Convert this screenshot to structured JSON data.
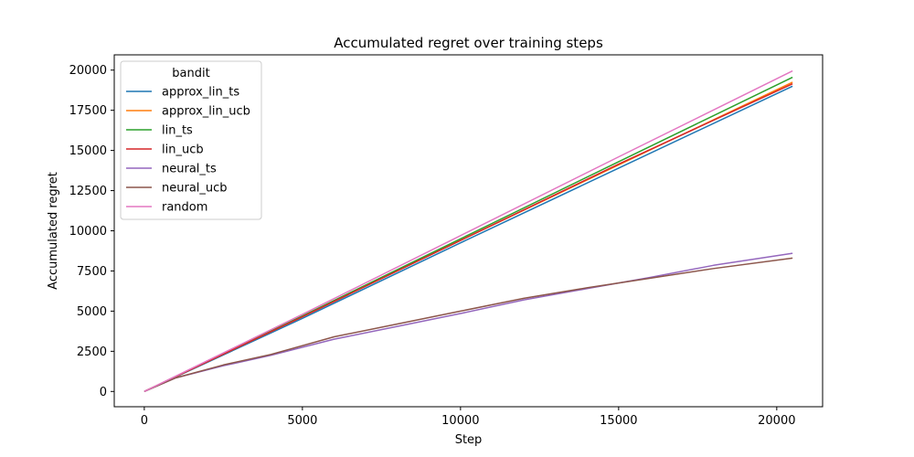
{
  "chart_data": {
    "type": "line",
    "title": "Accumulated regret over training steps",
    "xlabel": "Step",
    "ylabel": "Accumulated regret",
    "xlim": [
      -950,
      21450
    ],
    "ylim": [
      -950,
      20950
    ],
    "xticks": [
      0,
      5000,
      10000,
      15000,
      20000
    ],
    "yticks": [
      0,
      2500,
      5000,
      7500,
      10000,
      12500,
      15000,
      17500,
      20000
    ],
    "grid": false,
    "legend": {
      "title": "bandit",
      "placement": "top-left"
    },
    "series": [
      {
        "name": "approx_lin_ts",
        "color": "#1f77b4",
        "x": [
          0,
          5000,
          10000,
          15000,
          20500
        ],
        "y": [
          0,
          4550,
          9250,
          13900,
          19000
        ]
      },
      {
        "name": "approx_lin_ucb",
        "color": "#ff7f0e",
        "x": [
          0,
          5000,
          10000,
          15000,
          20500
        ],
        "y": [
          0,
          4650,
          9400,
          14100,
          19250
        ]
      },
      {
        "name": "lin_ts",
        "color": "#2ca02c",
        "x": [
          0,
          5000,
          10000,
          15000,
          20500
        ],
        "y": [
          0,
          4700,
          9500,
          14300,
          19550
        ]
      },
      {
        "name": "lin_ucb",
        "color": "#d62728",
        "x": [
          0,
          5000,
          10000,
          15000,
          20500
        ],
        "y": [
          0,
          4650,
          9400,
          14150,
          19150
        ]
      },
      {
        "name": "neural_ts",
        "color": "#9467bd",
        "x": [
          0,
          1000,
          2500,
          4000,
          6000,
          8000,
          10000,
          12000,
          14000,
          16000,
          18000,
          20500
        ],
        "y": [
          0,
          850,
          1600,
          2250,
          3250,
          4050,
          4850,
          5700,
          6400,
          7100,
          7850,
          8600
        ]
      },
      {
        "name": "neural_ucb",
        "color": "#8c564b",
        "x": [
          0,
          1000,
          2500,
          4000,
          6000,
          8000,
          10000,
          12000,
          14000,
          16000,
          18000,
          20500
        ],
        "y": [
          0,
          850,
          1650,
          2300,
          3400,
          4200,
          5000,
          5800,
          6450,
          7050,
          7650,
          8300
        ]
      },
      {
        "name": "random",
        "color": "#e377c2",
        "x": [
          0,
          5000,
          10000,
          15000,
          20500
        ],
        "y": [
          0,
          4800,
          9700,
          14600,
          19950
        ]
      }
    ]
  }
}
